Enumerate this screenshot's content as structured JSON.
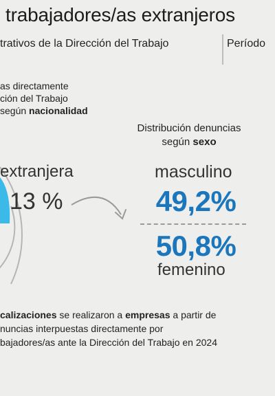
{
  "header": {
    "title": "trabajadores/as extranjeros",
    "subtitle": "trativos de la Dirección del Trabajo",
    "period_label": "Período"
  },
  "nationality": {
    "line1": "as directamente",
    "line2": "ción del Trabajo",
    "line3_prefix": "según ",
    "line3_bold": "nacionalidad",
    "extranjera_label": "extranjera",
    "extranjera_pct": "13 %",
    "chart_data": {
      "type": "pie",
      "categories": [
        "extranjera"
      ],
      "values": [
        13
      ],
      "colors": [
        "#3bb9e8"
      ]
    }
  },
  "sex": {
    "title_line1": "Distribución denuncias",
    "title_line2_prefix": "según ",
    "title_line2_bold": "sexo",
    "masculino_label": "masculino",
    "masculino_pct": "49,2%",
    "femenino_label": "femenino",
    "femenino_pct": "50,8%",
    "accent_color": "#1b76bc"
  },
  "footer": {
    "line1_bold1": "calizaciones",
    "line1_mid": " se realizaron a ",
    "line1_bold2": "empresas",
    "line1_end": " a partir de",
    "line2": "nuncias interpuestas directamente por",
    "line3": "bajadores/as ante la Dirección del Trabajo en 2024"
  }
}
